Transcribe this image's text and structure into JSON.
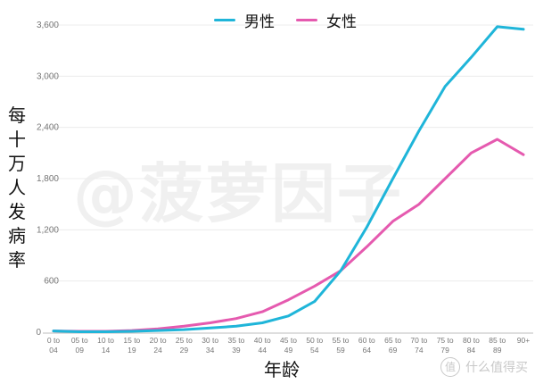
{
  "legend": {
    "male": {
      "label": "男性",
      "color": "#1fb5d9"
    },
    "female": {
      "label": "女性",
      "color": "#e55aaf"
    }
  },
  "axes": {
    "ylabel": "每十万人发病率",
    "xlabel": "年龄",
    "yticks": [
      "0",
      "600",
      "1,200",
      "1,800",
      "2,400",
      "3,000",
      "3,600"
    ]
  },
  "watermark": "@菠萝因子",
  "footer_watermark": {
    "icon": "值",
    "text": "什么值得买"
  },
  "chart_data": {
    "type": "line",
    "title": "",
    "xlabel": "年龄",
    "ylabel": "每十万人发病率",
    "ylim": [
      0,
      3600
    ],
    "yticks": [
      0,
      600,
      1200,
      1800,
      2400,
      3000,
      3600
    ],
    "grid": true,
    "legend_position": "top",
    "categories": [
      "0 to 04",
      "05 to 09",
      "10 to 14",
      "15 to 19",
      "20 to 24",
      "25 to 29",
      "30 to 34",
      "35 to 39",
      "40 to 44",
      "45 to 49",
      "50 to 54",
      "55 to 59",
      "60 to 64",
      "65 to 69",
      "70 to 74",
      "75 to 79",
      "80 to 84",
      "85 to 89",
      "90+"
    ],
    "category_lines": [
      [
        "0 to",
        "04"
      ],
      [
        "05 to",
        "09"
      ],
      [
        "10 to",
        "14"
      ],
      [
        "15 to",
        "19"
      ],
      [
        "20 to",
        "24"
      ],
      [
        "25 to",
        "29"
      ],
      [
        "30 to",
        "34"
      ],
      [
        "35 to",
        "39"
      ],
      [
        "40 to",
        "44"
      ],
      [
        "45 to",
        "49"
      ],
      [
        "50 to",
        "54"
      ],
      [
        "55 to",
        "59"
      ],
      [
        "60 to",
        "64"
      ],
      [
        "65 to",
        "69"
      ],
      [
        "70 to",
        "74"
      ],
      [
        "75 to",
        "79"
      ],
      [
        "80 to",
        "84"
      ],
      [
        "85 to",
        "89"
      ],
      [
        "90+",
        ""
      ]
    ],
    "series": [
      {
        "name": "男性",
        "color": "#1fb5d9",
        "values": [
          15,
          5,
          5,
          10,
          20,
          30,
          50,
          70,
          110,
          190,
          360,
          720,
          1230,
          1800,
          2360,
          2880,
          3220,
          3580,
          3550
        ]
      },
      {
        "name": "女性",
        "color": "#e55aaf",
        "values": [
          15,
          10,
          10,
          20,
          40,
          70,
          110,
          160,
          240,
          380,
          540,
          720,
          1000,
          1300,
          1500,
          1800,
          2100,
          2260,
          2080
        ]
      }
    ]
  }
}
